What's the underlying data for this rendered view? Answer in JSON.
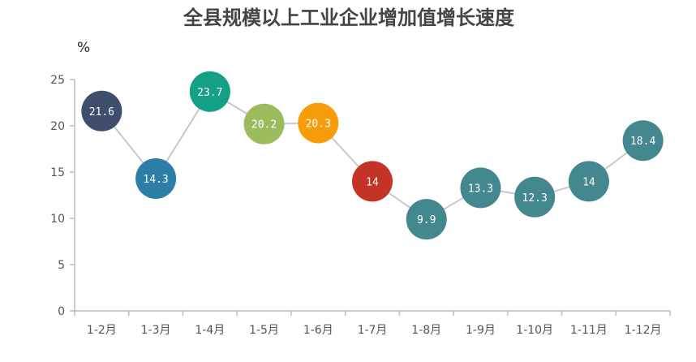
{
  "chart_data": {
    "type": "line",
    "title": "全县规模以上工业企业增加值增长速度",
    "ylabel": "%",
    "xlabel": "",
    "ylim": [
      0,
      25
    ],
    "yticks": [
      0,
      5,
      10,
      15,
      20,
      25
    ],
    "grid": false,
    "categories": [
      "1-2月",
      "1-3月",
      "1-4月",
      "1-5月",
      "1-6月",
      "1-7月",
      "1-8月",
      "1-9月",
      "1-10月",
      "1-11月",
      "1-12月"
    ],
    "values": [
      21.6,
      14.3,
      23.7,
      20.2,
      20.3,
      14,
      9.9,
      13.3,
      12.3,
      14,
      18.4
    ],
    "point_colors": [
      "#3e4e6c",
      "#2c7ea7",
      "#13a086",
      "#9cbb5d",
      "#f79d0b",
      "#c43426",
      "#44888f",
      "#44888f",
      "#44888f",
      "#44888f",
      "#44888f"
    ],
    "line_color": "#c8c8c8"
  }
}
